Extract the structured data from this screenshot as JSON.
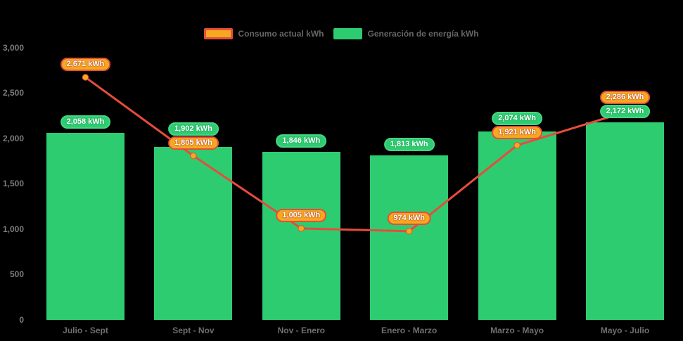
{
  "app": {
    "background": "#000000"
  },
  "chart_data": {
    "type": "combo-bar-line",
    "title": "",
    "legend_position": "top-center",
    "grid": false,
    "categories": [
      "Julio - Sept",
      "Sept - Nov",
      "Nov - Enero",
      "Enero - Marzo",
      "Marzo - Mayo",
      "Mayo - Julio"
    ],
    "series": [
      {
        "name": "Consumo actual kWh",
        "type": "line",
        "color": "#e74c3c",
        "marker_color": "#f5a91f",
        "label_bg": "#f5a91f",
        "label_border": "#e74c3c",
        "values": [
          2671,
          1805,
          1005,
          974,
          1921,
          2286
        ],
        "labels": [
          "2,671 kWh",
          "1,805 kWh",
          "1,005 kWh",
          "974 kWh",
          "1,921 kWh",
          "2,286 kWh"
        ]
      },
      {
        "name": "Generación de energía kWh",
        "type": "bar",
        "color": "#2ecc71",
        "label_bg": "#2ecc71",
        "label_border": "#45d684",
        "values": [
          2058,
          1902,
          1846,
          1813,
          2074,
          2172
        ],
        "labels": [
          "2,058 kWh",
          "1,902 kWh",
          "1,846 kWh",
          "1,813 kWh",
          "2,074 kWh",
          "2,172 kWh"
        ]
      }
    ],
    "yaxis": {
      "ylim": [
        0,
        3000
      ],
      "ticks": [
        {
          "label": "3,000",
          "value": 3000
        },
        {
          "label": "2,500",
          "value": 2500
        },
        {
          "label": "2,000",
          "value": 2000
        },
        {
          "label": "1,500",
          "value": 1500
        },
        {
          "label": "1,000",
          "value": 1000
        },
        {
          "label": "500",
          "value": 500
        },
        {
          "label": "0",
          "value": 0
        }
      ]
    }
  }
}
